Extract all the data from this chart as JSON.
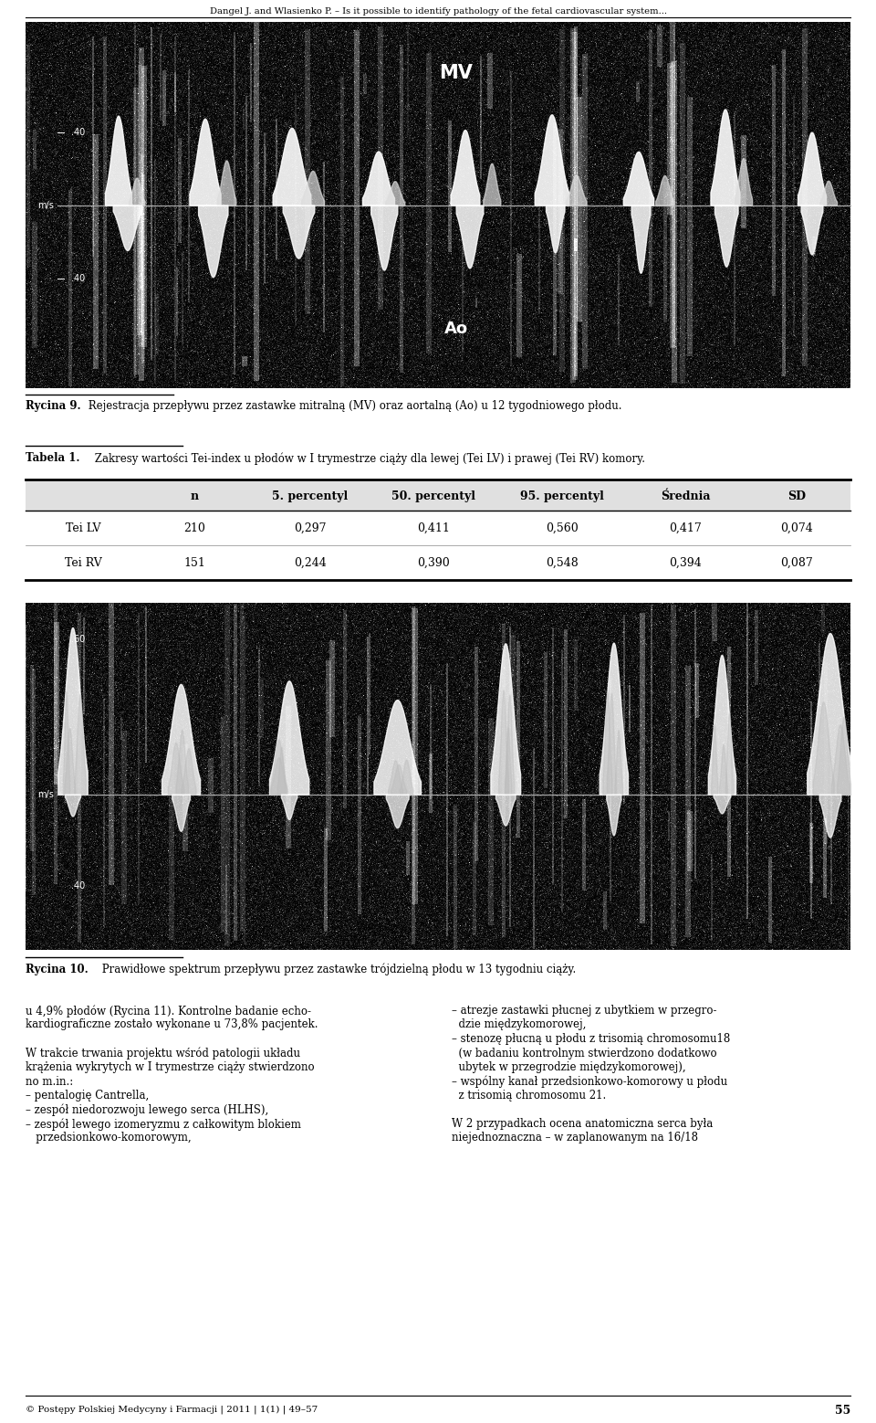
{
  "page_title": "Dangel J. and Wlasienko P. – Is it possible to identify pathology of the fetal cardiovascular system...",
  "fig9_caption_bold": "Rycina 9.",
  "fig9_caption_text": " Rejestracja przepływu przez zastawke mitralną (MV) oraz aortalną (Ao) u 12 tygodniowego płodu.",
  "table_label_bold": "Tabela 1.",
  "table_label_text": " Zakresy wartości Tei-index u płodów w I trymestrze ciąży dla lewej (Tei LV) i prawej (Tei RV) komory.",
  "table_headers": [
    "",
    "n",
    "5. percentyl",
    "50. percentyl",
    "95. percentyl",
    "Średnia",
    "SD"
  ],
  "table_rows": [
    [
      "Tei LV",
      "210",
      "0,297",
      "0,411",
      "0,560",
      "0,417",
      "0,074"
    ],
    [
      "Tei RV",
      "151",
      "0,244",
      "0,390",
      "0,548",
      "0,394",
      "0,087"
    ]
  ],
  "fig10_caption_bold": "Rycina 10.",
  "fig10_caption_text": " Prawidłowe spektrum przepływu przez zastawke trójdzielną płodu w 13 tygodniu ciąży.",
  "col1_lines": [
    "u 4,9% płodów (Rycina 11). Kontrolne badanie echo-",
    "kardiograficzne zostało wykonane u 73,8% pacjentek.",
    "",
    "W trakcie trwania projektu wśród patologii układu",
    "krążenia wykrytych w I trymestrze ciąży stwierdzono",
    "no m.in.:",
    "– pentalogię Cantrella,",
    "– zespół niedorozwoju lewego serca (HLHS),",
    "– zespół lewego izomeryzmu z całkowitym blokiem",
    "   przedsionkowo-komorowym,"
  ],
  "col2_lines": [
    "– atrezje zastawki płucnej z ubytkiem w przegro-",
    "  dzie międzykomorowej,",
    "– stenozę płucną u płodu z trisomią chromosomu18",
    "  (w badaniu kontrolnym stwierdzono dodatkowo",
    "  ubytek w przegrodzie międzykomorowej),",
    "– wspólny kanał przedsionkowo-komorowy u płodu",
    "  z trisomią chromosomu 21.",
    "",
    "W 2 przypadkach ocena anatomiczna serca była",
    "niejednoznaczna – w zaplanowanym na 16/18"
  ],
  "footer_text": "© Postępy Polskiej Medycyny i Farmacji | 2011 | 1(1) | 49–57",
  "footer_page": "55",
  "bg_color": "#ffffff",
  "text_color": "#000000",
  "table_header_bg": "#e0e0e0",
  "table_line_color": "#000000",
  "img_bg": "#0a0a0a"
}
